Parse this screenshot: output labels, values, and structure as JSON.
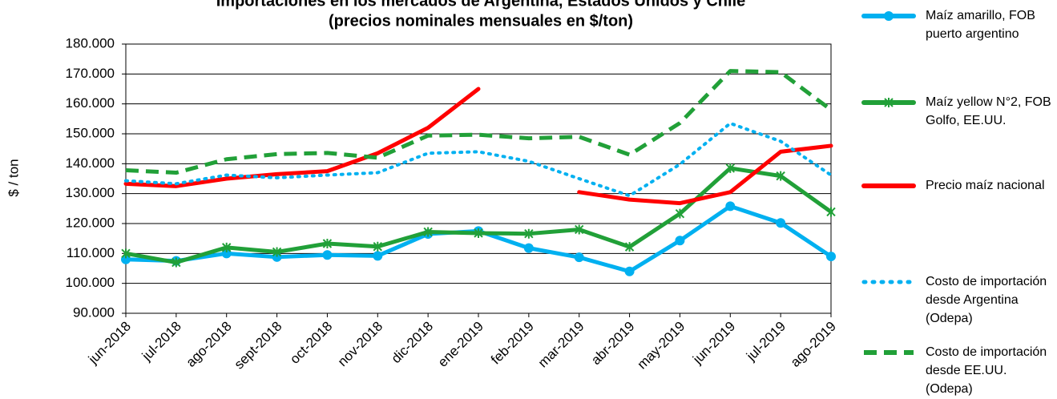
{
  "chart_data": {
    "type": "line",
    "title": "Importaciones en los mercados de Argentina, Estados Unidos y Chile",
    "subtitle": "(precios nominales mensuales en $/ton)",
    "ylabel": "$ / ton",
    "categories": [
      "jun-2018",
      "jul-2018",
      "ago-2018",
      "sept-2018",
      "oct-2018",
      "nov-2018",
      "dic-2018",
      "ene-2019",
      "feb-2019",
      "mar-2019",
      "abr-2019",
      "may-2019",
      "jun-2019",
      "jul-2019",
      "ago-2019"
    ],
    "ylim": [
      90000,
      180000
    ],
    "yticks": [
      {
        "value": 90000,
        "label": "90.000"
      },
      {
        "value": 100000,
        "label": "100.000"
      },
      {
        "value": 110000,
        "label": "110.000"
      },
      {
        "value": 120000,
        "label": "120.000"
      },
      {
        "value": 130000,
        "label": "130.000"
      },
      {
        "value": 140000,
        "label": "140.000"
      },
      {
        "value": 150000,
        "label": "150.000"
      },
      {
        "value": 160000,
        "label": "160.000"
      },
      {
        "value": 170000,
        "label": "170.000"
      },
      {
        "value": 180000,
        "label": "180.000"
      }
    ],
    "grid": true,
    "legend": "right",
    "series": [
      {
        "name": "Maíz amarillo, FOB puerto argentino",
        "color": "#00b0f0",
        "style": "solid",
        "marker": "circle",
        "values": [
          108000,
          107500,
          110000,
          108800,
          109500,
          109200,
          116500,
          117500,
          111800,
          108700,
          104000,
          114300,
          125800,
          120200,
          109000
        ]
      },
      {
        "name": "Maíz yellow N°2, FOB Golfo, EE.UU.",
        "color": "#21a038",
        "style": "solid",
        "marker": "asterisk",
        "values": [
          110000,
          107000,
          112000,
          110500,
          113300,
          112300,
          117200,
          116800,
          116600,
          118000,
          112200,
          123300,
          138500,
          135900,
          123900
        ]
      },
      {
        "name": "Precio maíz nacional",
        "color": "#ff0000",
        "style": "solid",
        "marker": "none",
        "values": [
          133300,
          132500,
          135000,
          136500,
          137500,
          143500,
          152000,
          165000,
          null,
          130500,
          128000,
          126800,
          130500,
          144000,
          146000
        ]
      },
      {
        "name": "Costo de importación desde Argentina (Odepa)",
        "color": "#00b0f0",
        "style": "dotted",
        "marker": "none",
        "values": [
          134300,
          133300,
          136200,
          135300,
          136200,
          137000,
          143500,
          144000,
          140800,
          135000,
          129300,
          139800,
          153500,
          147500,
          136200
        ]
      },
      {
        "name": "Costo de importación desde EE.UU. (Odepa)",
        "color": "#21a038",
        "style": "dashed",
        "marker": "none",
        "values": [
          137800,
          137000,
          141500,
          143200,
          143600,
          142000,
          149400,
          149700,
          148500,
          149000,
          143000,
          153600,
          171000,
          170600,
          158000
        ]
      }
    ]
  }
}
